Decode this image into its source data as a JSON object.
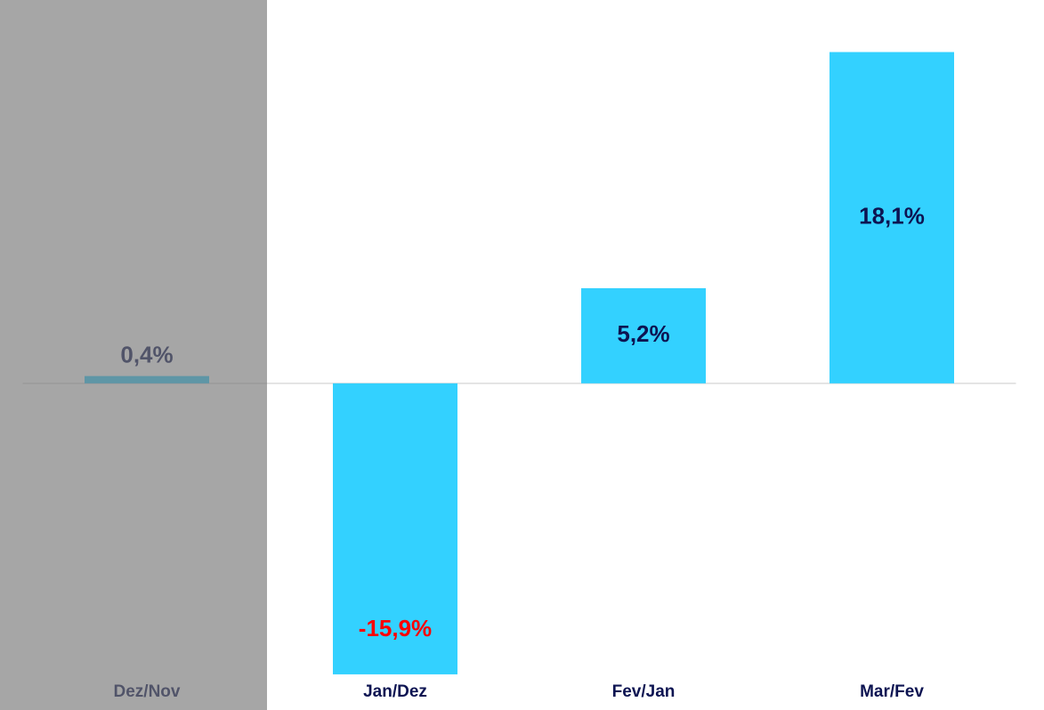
{
  "chart_data": {
    "type": "bar",
    "categories": [
      "Dez/Nov",
      "Jan/Dez",
      "Fev/Jan",
      "Mar/Fev"
    ],
    "values": [
      0.4,
      -15.9,
      5.2,
      18.1
    ],
    "value_labels": [
      "0,4%",
      "-15,9%",
      "5,2%",
      "18,1%"
    ],
    "color": "#33d1ff",
    "label_color": "#0d1452",
    "negative_label_color": "#ff0000",
    "highlight_index": 0,
    "ylim": [
      -16,
      19
    ]
  }
}
